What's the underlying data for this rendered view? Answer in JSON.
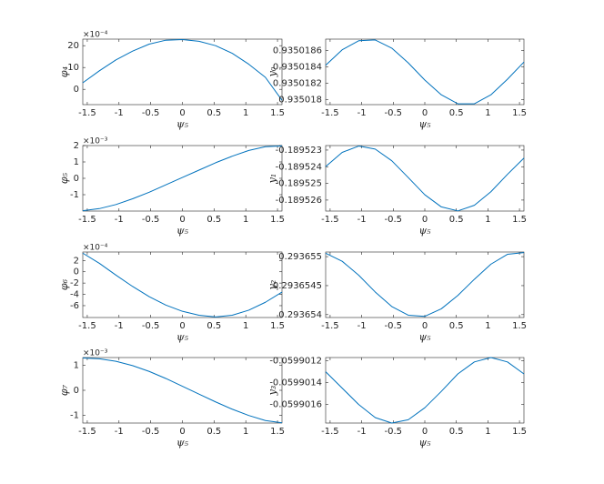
{
  "chart_data": [
    {
      "type": "line",
      "ylabel": "φ₄",
      "xlabel": "ψ₅",
      "exponent": "×10⁻⁴",
      "color": "#0072bd",
      "x": [
        -1.5708,
        -1.309,
        -1.0472,
        -0.7854,
        -0.5236,
        -0.2618,
        0,
        0.2618,
        0.5236,
        0.7854,
        1.0472,
        1.309,
        1.5708
      ],
      "values": [
        3,
        8.5,
        13.5,
        17.5,
        20.7,
        22.5,
        22.8,
        22,
        20,
        16.5,
        11.5,
        5.5,
        -5
      ],
      "xlim": [
        -1.5708,
        1.5708
      ],
      "xticks": [
        -1.5,
        -1,
        -0.5,
        0,
        0.5,
        1,
        1.5
      ],
      "ylim": [
        -7,
        23
      ],
      "yticks": [
        0,
        10,
        20
      ]
    },
    {
      "type": "line",
      "ylabel": "y₀",
      "xlabel": "ψ₅",
      "color": "#0072bd",
      "x": [
        -1.5708,
        -1.309,
        -1.0472,
        -0.7854,
        -0.5236,
        -0.2618,
        0,
        0.2618,
        0.5236,
        0.7854,
        1.0472,
        1.309,
        1.5708
      ],
      "values": [
        0.93501842,
        0.93501861,
        0.93501872,
        0.93501873,
        0.93501863,
        0.93501845,
        0.93501824,
        0.93501806,
        0.93501795,
        0.93501795,
        0.93501806,
        0.93501825,
        0.93501846
      ],
      "xlim": [
        -1.5708,
        1.5708
      ],
      "xticks": [
        -1.5,
        -1,
        -0.5,
        0,
        0.5,
        1,
        1.5
      ],
      "ylim": [
        0.93501794,
        0.93501874
      ],
      "yticks": [
        0.935018,
        0.9350182,
        0.9350184,
        0.9350186
      ]
    },
    {
      "type": "line",
      "ylabel": "φ₅",
      "xlabel": "ψ₅",
      "exponent": "×10⁻³",
      "color": "#0072bd",
      "x": [
        -1.5708,
        -1.309,
        -1.0472,
        -0.7854,
        -0.5236,
        -0.2618,
        0,
        0.2618,
        0.5236,
        0.7854,
        1.0472,
        1.309,
        1.5708
      ],
      "values": [
        -1.98,
        -1.85,
        -1.6,
        -1.25,
        -0.85,
        -0.4,
        0.05,
        0.5,
        0.95,
        1.35,
        1.7,
        1.93,
        1.98
      ],
      "xlim": [
        -1.5708,
        1.5708
      ],
      "xticks": [
        -1.5,
        -1,
        -0.5,
        0,
        0.5,
        1,
        1.5
      ],
      "ylim": [
        -2,
        2
      ],
      "yticks": [
        -1,
        0,
        1,
        2
      ]
    },
    {
      "type": "line",
      "ylabel": "y₁",
      "xlabel": "ψ₅",
      "color": "#0072bd",
      "x": [
        -1.5708,
        -1.309,
        -1.0472,
        -0.7854,
        -0.5236,
        -0.2618,
        0,
        0.2618,
        0.5236,
        0.7854,
        1.0472,
        1.309,
        1.5708
      ],
      "values": [
        -0.18952399,
        -0.18952314,
        -0.18952276,
        -0.18952294,
        -0.18952364,
        -0.18952465,
        -0.18952568,
        -0.18952641,
        -0.18952665,
        -0.18952631,
        -0.1895255,
        -0.18952446,
        -0.18952348
      ],
      "xlim": [
        -1.5708,
        1.5708
      ],
      "xticks": [
        -1.5,
        -1,
        -0.5,
        0,
        0.5,
        1,
        1.5
      ],
      "ylim": [
        -0.18952666,
        -0.18952273
      ],
      "yticks": [
        -0.189526,
        -0.189525,
        -0.189524,
        -0.189523
      ]
    },
    {
      "type": "line",
      "ylabel": "φ₆",
      "xlabel": "ψ₅",
      "exponent": "×10⁻⁴",
      "color": "#0072bd",
      "x": [
        -1.5708,
        -1.309,
        -1.0472,
        -0.7854,
        -0.5236,
        -0.2618,
        0,
        0.2618,
        0.5236,
        0.7854,
        1.0472,
        1.309,
        1.5708
      ],
      "values": [
        3.3,
        1.5,
        -0.6,
        -2.6,
        -4.4,
        -5.9,
        -7,
        -7.7,
        -8,
        -7.7,
        -6.8,
        -5.4,
        -3.6
      ],
      "xlim": [
        -1.5708,
        1.5708
      ],
      "xticks": [
        -1.5,
        -1,
        -0.5,
        0,
        0.5,
        1,
        1.5
      ],
      "ylim": [
        -8.1,
        3.5
      ],
      "yticks": [
        -6,
        -4,
        -2,
        0,
        2
      ]
    },
    {
      "type": "line",
      "ylabel": "y₂",
      "xlabel": "ψ₅",
      "color": "#0072bd",
      "x": [
        -1.5708,
        -1.309,
        -1.0472,
        -0.7854,
        -0.5236,
        -0.2618,
        0,
        0.2618,
        0.5236,
        0.7854,
        1.0472,
        1.309,
        1.5708
      ],
      "values": [
        0.29365506,
        0.29365492,
        0.29365468,
        0.29365439,
        0.29365414,
        0.29365399,
        0.29365397,
        0.2936541,
        0.29365433,
        0.29365461,
        0.29365487,
        0.29365504,
        0.29365507
      ],
      "xlim": [
        -1.5708,
        1.5708
      ],
      "xticks": [
        -1.5,
        -1,
        -0.5,
        0,
        0.5,
        1,
        1.5
      ],
      "ylim": [
        0.29365395,
        0.29365508
      ],
      "yticks": [
        0.293654,
        0.2936545,
        0.293655
      ]
    },
    {
      "type": "line",
      "ylabel": "φ₇",
      "xlabel": "ψ₅",
      "exponent": "×10⁻³",
      "color": "#0072bd",
      "x": [
        -1.5708,
        -1.309,
        -1.0472,
        -0.7854,
        -0.5236,
        -0.2618,
        0,
        0.2618,
        0.5236,
        0.7854,
        1.0472,
        1.309,
        1.5708
      ],
      "values": [
        1.28,
        1.25,
        1.15,
        0.98,
        0.75,
        0.47,
        0.16,
        -0.15,
        -0.46,
        -0.75,
        -1,
        -1.2,
        -1.29
      ],
      "xlim": [
        -1.5708,
        1.5708
      ],
      "xticks": [
        -1.5,
        -1,
        -0.5,
        0,
        0.5,
        1,
        1.5
      ],
      "ylim": [
        -1.3,
        1.3
      ],
      "yticks": [
        -1,
        0,
        1
      ]
    },
    {
      "type": "line",
      "ylabel": "y₃",
      "xlabel": "ψ₅",
      "color": "#0072bd",
      "x": [
        -1.5708,
        -1.309,
        -1.0472,
        -0.7854,
        -0.5236,
        -0.2618,
        0,
        0.2618,
        0.5236,
        0.7854,
        1.0472,
        1.309,
        1.5708
      ],
      "values": [
        -0.0599013,
        -0.05990145,
        -0.0599016,
        -0.05990172,
        -0.05990177,
        -0.05990174,
        -0.05990163,
        -0.05990148,
        -0.05990132,
        -0.05990121,
        -0.05990117,
        -0.05990121,
        -0.05990132
      ],
      "xlim": [
        -1.5708,
        1.5708
      ],
      "xticks": [
        -1.5,
        -1,
        -0.5,
        0,
        0.5,
        1,
        1.5
      ],
      "ylim": [
        -0.05990177,
        -0.05990117
      ],
      "yticks": [
        -0.0599016,
        -0.0599014,
        -0.0599012
      ]
    }
  ]
}
